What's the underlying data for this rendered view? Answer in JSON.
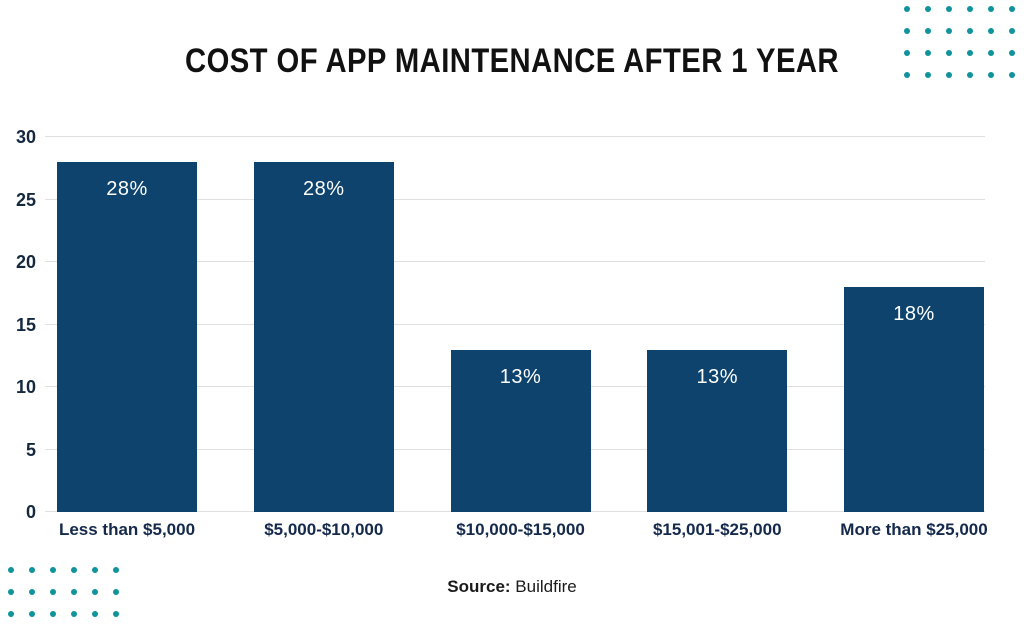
{
  "title": "COST OF APP MAINTENANCE AFTER 1 YEAR",
  "chart_data": {
    "type": "bar",
    "categories": [
      "Less than $5,000",
      "$5,000-$10,000",
      "$10,000-$15,000",
      "$15,001-$25,000",
      "More than $25,000"
    ],
    "values": [
      28,
      28,
      13,
      13,
      18
    ],
    "value_labels": [
      "28%",
      "28%",
      "13%",
      "13%",
      "18%"
    ],
    "title": "COST OF APP MAINTENANCE AFTER 1 YEAR",
    "xlabel": "",
    "ylabel": "",
    "ylim": [
      0,
      30
    ],
    "yticks": [
      0,
      5,
      10,
      15,
      20,
      25,
      30
    ],
    "grid": true,
    "legend": "none",
    "bar_color": "#0e436e",
    "value_label_color": "#ffffff",
    "axis_tick_color": "#14283f",
    "category_label_color": "#14294c",
    "gridline_color": "#e0e0e0"
  },
  "source": {
    "label": "Source:",
    "value": "Buildfire"
  },
  "decor": {
    "dot_color": "#0f939c",
    "top_right_dots": {
      "rows": 4,
      "cols": 6
    },
    "bottom_left_dots": {
      "rows": 3,
      "cols": 6
    }
  }
}
